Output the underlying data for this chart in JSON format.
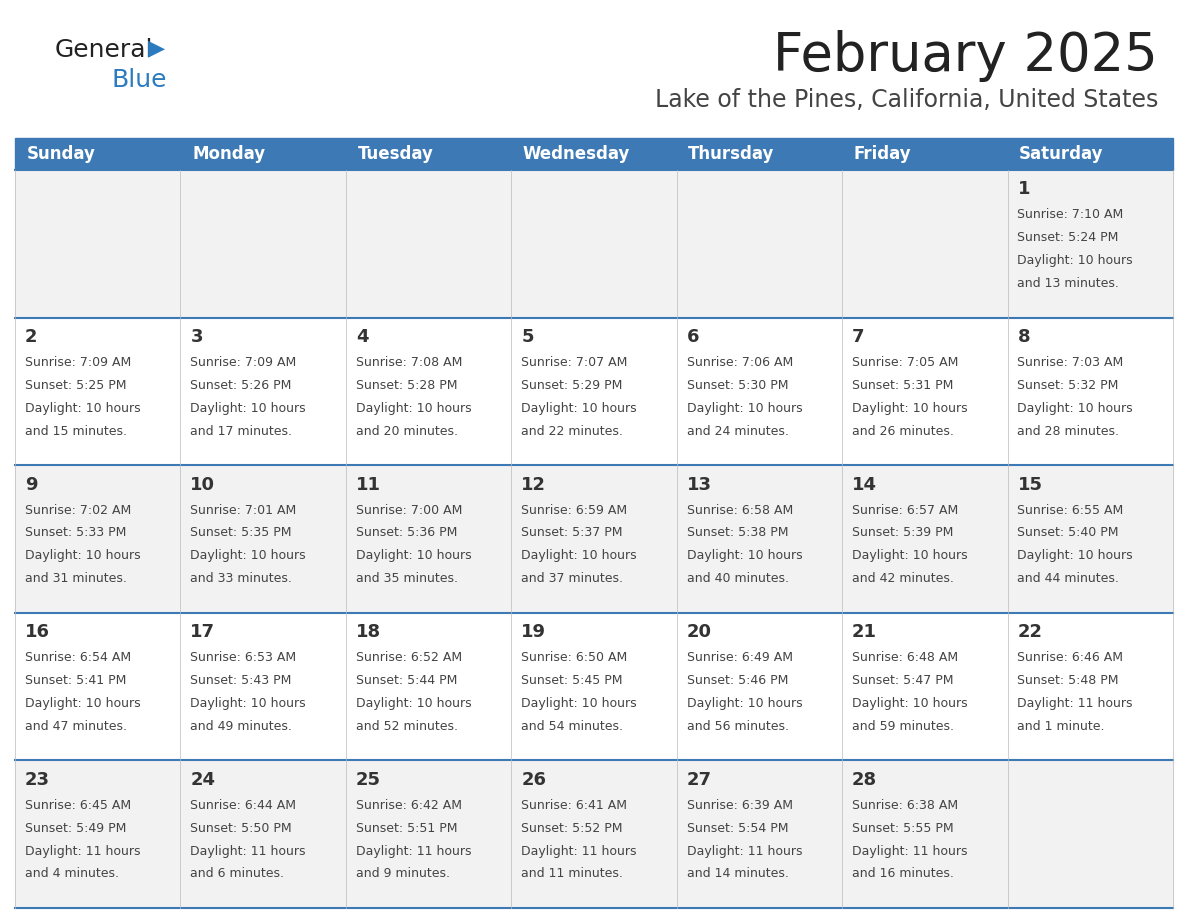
{
  "title": "February 2025",
  "subtitle": "Lake of the Pines, California, United States",
  "days_of_week": [
    "Sunday",
    "Monday",
    "Tuesday",
    "Wednesday",
    "Thursday",
    "Friday",
    "Saturday"
  ],
  "header_bg": "#3d7ab5",
  "header_text": "#ffffff",
  "cell_bg_odd": "#f2f2f2",
  "cell_bg_even": "#ffffff",
  "title_color": "#222222",
  "subtitle_color": "#444444",
  "day_num_color": "#333333",
  "info_color": "#444444",
  "line_color": "#3d7ab5",
  "logo_general_color": "#222222",
  "logo_blue_color": "#2d7bbf",
  "title_fontsize": 38,
  "subtitle_fontsize": 17,
  "header_fontsize": 12,
  "day_num_fontsize": 13,
  "info_fontsize": 9,
  "calendar": [
    [
      {
        "day": null,
        "sunrise": null,
        "sunset": null,
        "daylight": null
      },
      {
        "day": null,
        "sunrise": null,
        "sunset": null,
        "daylight": null
      },
      {
        "day": null,
        "sunrise": null,
        "sunset": null,
        "daylight": null
      },
      {
        "day": null,
        "sunrise": null,
        "sunset": null,
        "daylight": null
      },
      {
        "day": null,
        "sunrise": null,
        "sunset": null,
        "daylight": null
      },
      {
        "day": null,
        "sunrise": null,
        "sunset": null,
        "daylight": null
      },
      {
        "day": 1,
        "sunrise": "7:10 AM",
        "sunset": "5:24 PM",
        "daylight": "10 hours\nand 13 minutes."
      }
    ],
    [
      {
        "day": 2,
        "sunrise": "7:09 AM",
        "sunset": "5:25 PM",
        "daylight": "10 hours\nand 15 minutes."
      },
      {
        "day": 3,
        "sunrise": "7:09 AM",
        "sunset": "5:26 PM",
        "daylight": "10 hours\nand 17 minutes."
      },
      {
        "day": 4,
        "sunrise": "7:08 AM",
        "sunset": "5:28 PM",
        "daylight": "10 hours\nand 20 minutes."
      },
      {
        "day": 5,
        "sunrise": "7:07 AM",
        "sunset": "5:29 PM",
        "daylight": "10 hours\nand 22 minutes."
      },
      {
        "day": 6,
        "sunrise": "7:06 AM",
        "sunset": "5:30 PM",
        "daylight": "10 hours\nand 24 minutes."
      },
      {
        "day": 7,
        "sunrise": "7:05 AM",
        "sunset": "5:31 PM",
        "daylight": "10 hours\nand 26 minutes."
      },
      {
        "day": 8,
        "sunrise": "7:03 AM",
        "sunset": "5:32 PM",
        "daylight": "10 hours\nand 28 minutes."
      }
    ],
    [
      {
        "day": 9,
        "sunrise": "7:02 AM",
        "sunset": "5:33 PM",
        "daylight": "10 hours\nand 31 minutes."
      },
      {
        "day": 10,
        "sunrise": "7:01 AM",
        "sunset": "5:35 PM",
        "daylight": "10 hours\nand 33 minutes."
      },
      {
        "day": 11,
        "sunrise": "7:00 AM",
        "sunset": "5:36 PM",
        "daylight": "10 hours\nand 35 minutes."
      },
      {
        "day": 12,
        "sunrise": "6:59 AM",
        "sunset": "5:37 PM",
        "daylight": "10 hours\nand 37 minutes."
      },
      {
        "day": 13,
        "sunrise": "6:58 AM",
        "sunset": "5:38 PM",
        "daylight": "10 hours\nand 40 minutes."
      },
      {
        "day": 14,
        "sunrise": "6:57 AM",
        "sunset": "5:39 PM",
        "daylight": "10 hours\nand 42 minutes."
      },
      {
        "day": 15,
        "sunrise": "6:55 AM",
        "sunset": "5:40 PM",
        "daylight": "10 hours\nand 44 minutes."
      }
    ],
    [
      {
        "day": 16,
        "sunrise": "6:54 AM",
        "sunset": "5:41 PM",
        "daylight": "10 hours\nand 47 minutes."
      },
      {
        "day": 17,
        "sunrise": "6:53 AM",
        "sunset": "5:43 PM",
        "daylight": "10 hours\nand 49 minutes."
      },
      {
        "day": 18,
        "sunrise": "6:52 AM",
        "sunset": "5:44 PM",
        "daylight": "10 hours\nand 52 minutes."
      },
      {
        "day": 19,
        "sunrise": "6:50 AM",
        "sunset": "5:45 PM",
        "daylight": "10 hours\nand 54 minutes."
      },
      {
        "day": 20,
        "sunrise": "6:49 AM",
        "sunset": "5:46 PM",
        "daylight": "10 hours\nand 56 minutes."
      },
      {
        "day": 21,
        "sunrise": "6:48 AM",
        "sunset": "5:47 PM",
        "daylight": "10 hours\nand 59 minutes."
      },
      {
        "day": 22,
        "sunrise": "6:46 AM",
        "sunset": "5:48 PM",
        "daylight": "11 hours\nand 1 minute."
      }
    ],
    [
      {
        "day": 23,
        "sunrise": "6:45 AM",
        "sunset": "5:49 PM",
        "daylight": "11 hours\nand 4 minutes."
      },
      {
        "day": 24,
        "sunrise": "6:44 AM",
        "sunset": "5:50 PM",
        "daylight": "11 hours\nand 6 minutes."
      },
      {
        "day": 25,
        "sunrise": "6:42 AM",
        "sunset": "5:51 PM",
        "daylight": "11 hours\nand 9 minutes."
      },
      {
        "day": 26,
        "sunrise": "6:41 AM",
        "sunset": "5:52 PM",
        "daylight": "11 hours\nand 11 minutes."
      },
      {
        "day": 27,
        "sunrise": "6:39 AM",
        "sunset": "5:54 PM",
        "daylight": "11 hours\nand 14 minutes."
      },
      {
        "day": 28,
        "sunrise": "6:38 AM",
        "sunset": "5:55 PM",
        "daylight": "11 hours\nand 16 minutes."
      },
      {
        "day": null,
        "sunrise": null,
        "sunset": null,
        "daylight": null
      }
    ]
  ]
}
